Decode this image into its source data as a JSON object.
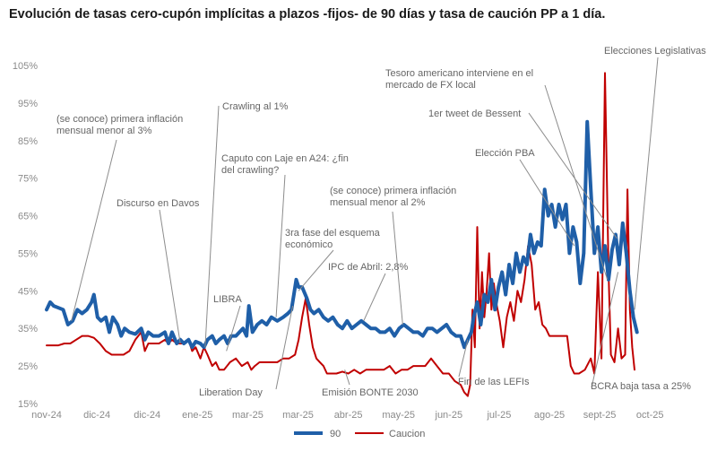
{
  "title": "Evolución de tasas cero-cupón implícitas a plazos -fijos- de 90 días y tasa de caución PP a 1 día.",
  "colors": {
    "series_90": "#1f5fa8",
    "series_caucion": "#c00000",
    "annotation_line": "#8c8c8c",
    "tick_text": "#8a8a8a"
  },
  "chart_data": {
    "type": "line",
    "title": "Evolución de tasas cero-cupón implícitas a plazos -fijos- de 90 días y tasa de caución PP a 1 día.",
    "xlabel": "",
    "ylabel": "",
    "x_range": [
      0,
      50
    ],
    "ylim": [
      15,
      105
    ],
    "y_ticks": [
      "105%",
      "95%",
      "85%",
      "75%",
      "65%",
      "55%",
      "45%",
      "35%",
      "25%",
      "15%"
    ],
    "y_tick_values": [
      105,
      95,
      85,
      75,
      65,
      55,
      45,
      35,
      25,
      15
    ],
    "x_ticks": [
      "nov-24",
      "dic-24",
      "dic-24",
      "ene-25",
      "mar-25",
      "mar-25",
      "abr-25",
      "may-25",
      "jun-25",
      "jul-25",
      "ago-25",
      "sept-25",
      "oct-25"
    ],
    "x_tick_positions": [
      0,
      4.25,
      8.5,
      12.75,
      17,
      21.25,
      25.5,
      29.75,
      34,
      38.25,
      42.5,
      46.75,
      51
    ],
    "grid": false,
    "legend": "bottom-center",
    "series": [
      {
        "name": "90",
        "color": "#1f5fa8",
        "points": [
          [
            0,
            40
          ],
          [
            0.3,
            42
          ],
          [
            0.6,
            41
          ],
          [
            1,
            40.5
          ],
          [
            1.4,
            40
          ],
          [
            1.8,
            36
          ],
          [
            2.2,
            37
          ],
          [
            2.6,
            40
          ],
          [
            3,
            39
          ],
          [
            3.4,
            40
          ],
          [
            3.8,
            42
          ],
          [
            4,
            44
          ],
          [
            4.3,
            38
          ],
          [
            4.6,
            37
          ],
          [
            5,
            38
          ],
          [
            5.3,
            34
          ],
          [
            5.6,
            38
          ],
          [
            6,
            36
          ],
          [
            6.3,
            33
          ],
          [
            6.6,
            35
          ],
          [
            7,
            34
          ],
          [
            7.5,
            33.5
          ],
          [
            8,
            35
          ],
          [
            8.3,
            32
          ],
          [
            8.6,
            34
          ],
          [
            9,
            33
          ],
          [
            9.5,
            33
          ],
          [
            10,
            34
          ],
          [
            10.3,
            31
          ],
          [
            10.6,
            34
          ],
          [
            11,
            31
          ],
          [
            11.3,
            32
          ],
          [
            11.6,
            31
          ],
          [
            12,
            32
          ],
          [
            12.3,
            30
          ],
          [
            12.6,
            31.5
          ],
          [
            13,
            31
          ],
          [
            13.3,
            30
          ],
          [
            13.6,
            32
          ],
          [
            14,
            33
          ],
          [
            14.3,
            31
          ],
          [
            14.6,
            32
          ],
          [
            15,
            33
          ],
          [
            15.3,
            31
          ],
          [
            15.6,
            33
          ],
          [
            16,
            33
          ],
          [
            16.3,
            34
          ],
          [
            16.6,
            35
          ],
          [
            16.9,
            33
          ],
          [
            17.1,
            41
          ],
          [
            17.4,
            34
          ],
          [
            17.8,
            36
          ],
          [
            18.2,
            37
          ],
          [
            18.6,
            36
          ],
          [
            19,
            38
          ],
          [
            19.5,
            37
          ],
          [
            20,
            38
          ],
          [
            20.4,
            39
          ],
          [
            20.7,
            40
          ],
          [
            20.9,
            44
          ],
          [
            21.1,
            48
          ],
          [
            21.3,
            46
          ],
          [
            21.6,
            46
          ],
          [
            22,
            43
          ],
          [
            22.3,
            40
          ],
          [
            22.6,
            39
          ],
          [
            23,
            40
          ],
          [
            23.4,
            38
          ],
          [
            23.8,
            37
          ],
          [
            24.2,
            38
          ],
          [
            24.6,
            36
          ],
          [
            25,
            35
          ],
          [
            25.4,
            37
          ],
          [
            25.8,
            35
          ],
          [
            26.2,
            36
          ],
          [
            26.6,
            37
          ],
          [
            27,
            36
          ],
          [
            27.4,
            35
          ],
          [
            27.8,
            35
          ],
          [
            28.2,
            34
          ],
          [
            28.6,
            34
          ],
          [
            29,
            35
          ],
          [
            29.4,
            33
          ],
          [
            29.8,
            35
          ],
          [
            30.2,
            36
          ],
          [
            30.6,
            35
          ],
          [
            31,
            34
          ],
          [
            31.4,
            34
          ],
          [
            31.8,
            33
          ],
          [
            32.2,
            35
          ],
          [
            32.6,
            35
          ],
          [
            33,
            34
          ],
          [
            33.4,
            35
          ],
          [
            33.8,
            36
          ],
          [
            34.2,
            34
          ],
          [
            34.6,
            33
          ],
          [
            35,
            33
          ],
          [
            35.3,
            30
          ],
          [
            35.6,
            32
          ],
          [
            35.9,
            34
          ],
          [
            36.1,
            38
          ],
          [
            36.4,
            42
          ],
          [
            36.7,
            36
          ],
          [
            37,
            44
          ],
          [
            37.3,
            42
          ],
          [
            37.6,
            48
          ],
          [
            37.9,
            40
          ],
          [
            38.2,
            46
          ],
          [
            38.5,
            50
          ],
          [
            38.8,
            44
          ],
          [
            39.1,
            52
          ],
          [
            39.4,
            47
          ],
          [
            39.7,
            55
          ],
          [
            40,
            50
          ],
          [
            40.3,
            54
          ],
          [
            40.6,
            52
          ],
          [
            40.9,
            60
          ],
          [
            41.2,
            55
          ],
          [
            41.5,
            58
          ],
          [
            41.8,
            57
          ],
          [
            42.1,
            72
          ],
          [
            42.4,
            65
          ],
          [
            42.7,
            68
          ],
          [
            43,
            62
          ],
          [
            43.3,
            68
          ],
          [
            43.6,
            64
          ],
          [
            43.9,
            68
          ],
          [
            44.2,
            55
          ],
          [
            44.5,
            62
          ],
          [
            44.8,
            58
          ],
          [
            45.1,
            47
          ],
          [
            45.4,
            55
          ],
          [
            45.7,
            90
          ],
          [
            46,
            72
          ],
          [
            46.3,
            55
          ],
          [
            46.6,
            62
          ],
          [
            46.9,
            50
          ],
          [
            47.2,
            57
          ],
          [
            47.5,
            48
          ],
          [
            47.8,
            56
          ],
          [
            48.1,
            60
          ],
          [
            48.4,
            52
          ],
          [
            48.7,
            63
          ],
          [
            49,
            55
          ],
          [
            49.3,
            45
          ],
          [
            49.6,
            38
          ],
          [
            49.9,
            34
          ]
        ]
      },
      {
        "name": "Caucion",
        "color": "#c00000",
        "points": [
          [
            0,
            30.5
          ],
          [
            0.5,
            30.5
          ],
          [
            1,
            30.5
          ],
          [
            1.5,
            31
          ],
          [
            2,
            31
          ],
          [
            2.5,
            32
          ],
          [
            3,
            33
          ],
          [
            3.5,
            33
          ],
          [
            4,
            32.5
          ],
          [
            4.5,
            31
          ],
          [
            5,
            29
          ],
          [
            5.5,
            28
          ],
          [
            6,
            28
          ],
          [
            6.5,
            28
          ],
          [
            7,
            29
          ],
          [
            7.5,
            32
          ],
          [
            8,
            34
          ],
          [
            8.3,
            29
          ],
          [
            8.6,
            31
          ],
          [
            9,
            31
          ],
          [
            9.5,
            31
          ],
          [
            10,
            32
          ],
          [
            10.3,
            31
          ],
          [
            10.6,
            32
          ],
          [
            11,
            31
          ],
          [
            11.5,
            31
          ],
          [
            12,
            32
          ],
          [
            12.3,
            29
          ],
          [
            12.6,
            30
          ],
          [
            13,
            27
          ],
          [
            13.3,
            30
          ],
          [
            13.6,
            28
          ],
          [
            14,
            25
          ],
          [
            14.3,
            26
          ],
          [
            14.6,
            24
          ],
          [
            15,
            24
          ],
          [
            15.5,
            26
          ],
          [
            16,
            27
          ],
          [
            16.5,
            25
          ],
          [
            17,
            26
          ],
          [
            17.3,
            24
          ],
          [
            17.6,
            25
          ],
          [
            18,
            26
          ],
          [
            18.5,
            26
          ],
          [
            19,
            26
          ],
          [
            19.5,
            26
          ],
          [
            20,
            27
          ],
          [
            20.5,
            27
          ],
          [
            21,
            28
          ],
          [
            21.3,
            32
          ],
          [
            21.6,
            38
          ],
          [
            21.9,
            43
          ],
          [
            22.2,
            36
          ],
          [
            22.5,
            30
          ],
          [
            22.8,
            27
          ],
          [
            23.1,
            26
          ],
          [
            23.4,
            25
          ],
          [
            23.7,
            23
          ],
          [
            24,
            23
          ],
          [
            24.5,
            23
          ],
          [
            25,
            23.5
          ],
          [
            25.5,
            23
          ],
          [
            26,
            24
          ],
          [
            26.5,
            23
          ],
          [
            27,
            24
          ],
          [
            27.5,
            24
          ],
          [
            28,
            24
          ],
          [
            28.5,
            24
          ],
          [
            29,
            25
          ],
          [
            29.5,
            23
          ],
          [
            30,
            24
          ],
          [
            30.5,
            24
          ],
          [
            31,
            25
          ],
          [
            31.5,
            25
          ],
          [
            32,
            25
          ],
          [
            32.5,
            27
          ],
          [
            33,
            25
          ],
          [
            33.5,
            23
          ],
          [
            34,
            23
          ],
          [
            34.5,
            21
          ],
          [
            35,
            20
          ],
          [
            35.3,
            18
          ],
          [
            35.6,
            17
          ],
          [
            35.8,
            20
          ],
          [
            36,
            40
          ],
          [
            36.2,
            30
          ],
          [
            36.4,
            62
          ],
          [
            36.6,
            35
          ],
          [
            36.8,
            50
          ],
          [
            37,
            38
          ],
          [
            37.2,
            45
          ],
          [
            37.4,
            55
          ],
          [
            37.6,
            40
          ],
          [
            37.8,
            47
          ],
          [
            38,
            42
          ],
          [
            38.3,
            37
          ],
          [
            38.6,
            30
          ],
          [
            38.9,
            38
          ],
          [
            39.2,
            42
          ],
          [
            39.5,
            37
          ],
          [
            39.8,
            45
          ],
          [
            40.1,
            42
          ],
          [
            40.4,
            48
          ],
          [
            40.7,
            57
          ],
          [
            41,
            52
          ],
          [
            41.3,
            40
          ],
          [
            41.6,
            42
          ],
          [
            41.9,
            36
          ],
          [
            42.2,
            35
          ],
          [
            42.5,
            33
          ],
          [
            43,
            33
          ],
          [
            43.5,
            33
          ],
          [
            44,
            33
          ],
          [
            44.3,
            25
          ],
          [
            44.6,
            23
          ],
          [
            45,
            23
          ],
          [
            45.5,
            24
          ],
          [
            46,
            27
          ],
          [
            46.3,
            23
          ],
          [
            46.6,
            50
          ],
          [
            46.9,
            27
          ],
          [
            47.2,
            103
          ],
          [
            47.5,
            50
          ],
          [
            47.7,
            28
          ],
          [
            48,
            26
          ],
          [
            48.3,
            35
          ],
          [
            48.6,
            27
          ],
          [
            48.9,
            28
          ],
          [
            49.1,
            72
          ],
          [
            49.3,
            40
          ],
          [
            49.5,
            30
          ],
          [
            49.7,
            24
          ]
        ]
      }
    ],
    "annotations": [
      {
        "text": [
          "(se conoce) primera inflación",
          "mensual menor al 3%"
        ],
        "x": 2.1,
        "y": 37
      },
      {
        "text": [
          "Discurso en Davos"
        ],
        "x": 11.3,
        "y": 31
      },
      {
        "text": [
          "Crawling al 1%"
        ],
        "x": 13.4,
        "y": 30
      },
      {
        "text": [
          "LIBRA"
        ],
        "x": 15.2,
        "y": 29
      },
      {
        "text": [
          "Caputo con Laje en A24: ¿fin",
          "del crawling?"
        ],
        "x": 19.4,
        "y": 38
      },
      {
        "text": [
          "3ra fase del esquema",
          "económico"
        ],
        "x": 21.3,
        "y": 45
      },
      {
        "text": [
          "IPC de Abril: 2,8%"
        ],
        "x": 26.8,
        "y": 37
      },
      {
        "text": [
          "(se conoce) primera inflación",
          "mensual menor al 2%"
        ],
        "x": 30.1,
        "y": 36
      },
      {
        "text": [
          "Liberation Day"
        ],
        "x": 20.8,
        "y": 41
      },
      {
        "text": [
          "Emisión BONTE 2030"
        ],
        "x": 25.2,
        "y": 24
      },
      {
        "text": [
          "Fin de las LEFIs"
        ],
        "x": 35.6,
        "y": 32
      },
      {
        "text": [
          "Elección PBA"
        ],
        "x": 44.6,
        "y": 57
      },
      {
        "text": [
          "1er tweet de Bessent"
        ],
        "x": 48.2,
        "y": 59
      },
      {
        "text": [
          "Tesoro americano interviene en el",
          "mercado de FX local"
        ],
        "x": 47.4,
        "y": 48
      },
      {
        "text": [
          "Elecciones Legislativas"
        ],
        "x": 49.7,
        "y": 40
      },
      {
        "text": [
          "BCRA baja tasa a 25%"
        ],
        "x": 48.3,
        "y": 50
      }
    ]
  }
}
